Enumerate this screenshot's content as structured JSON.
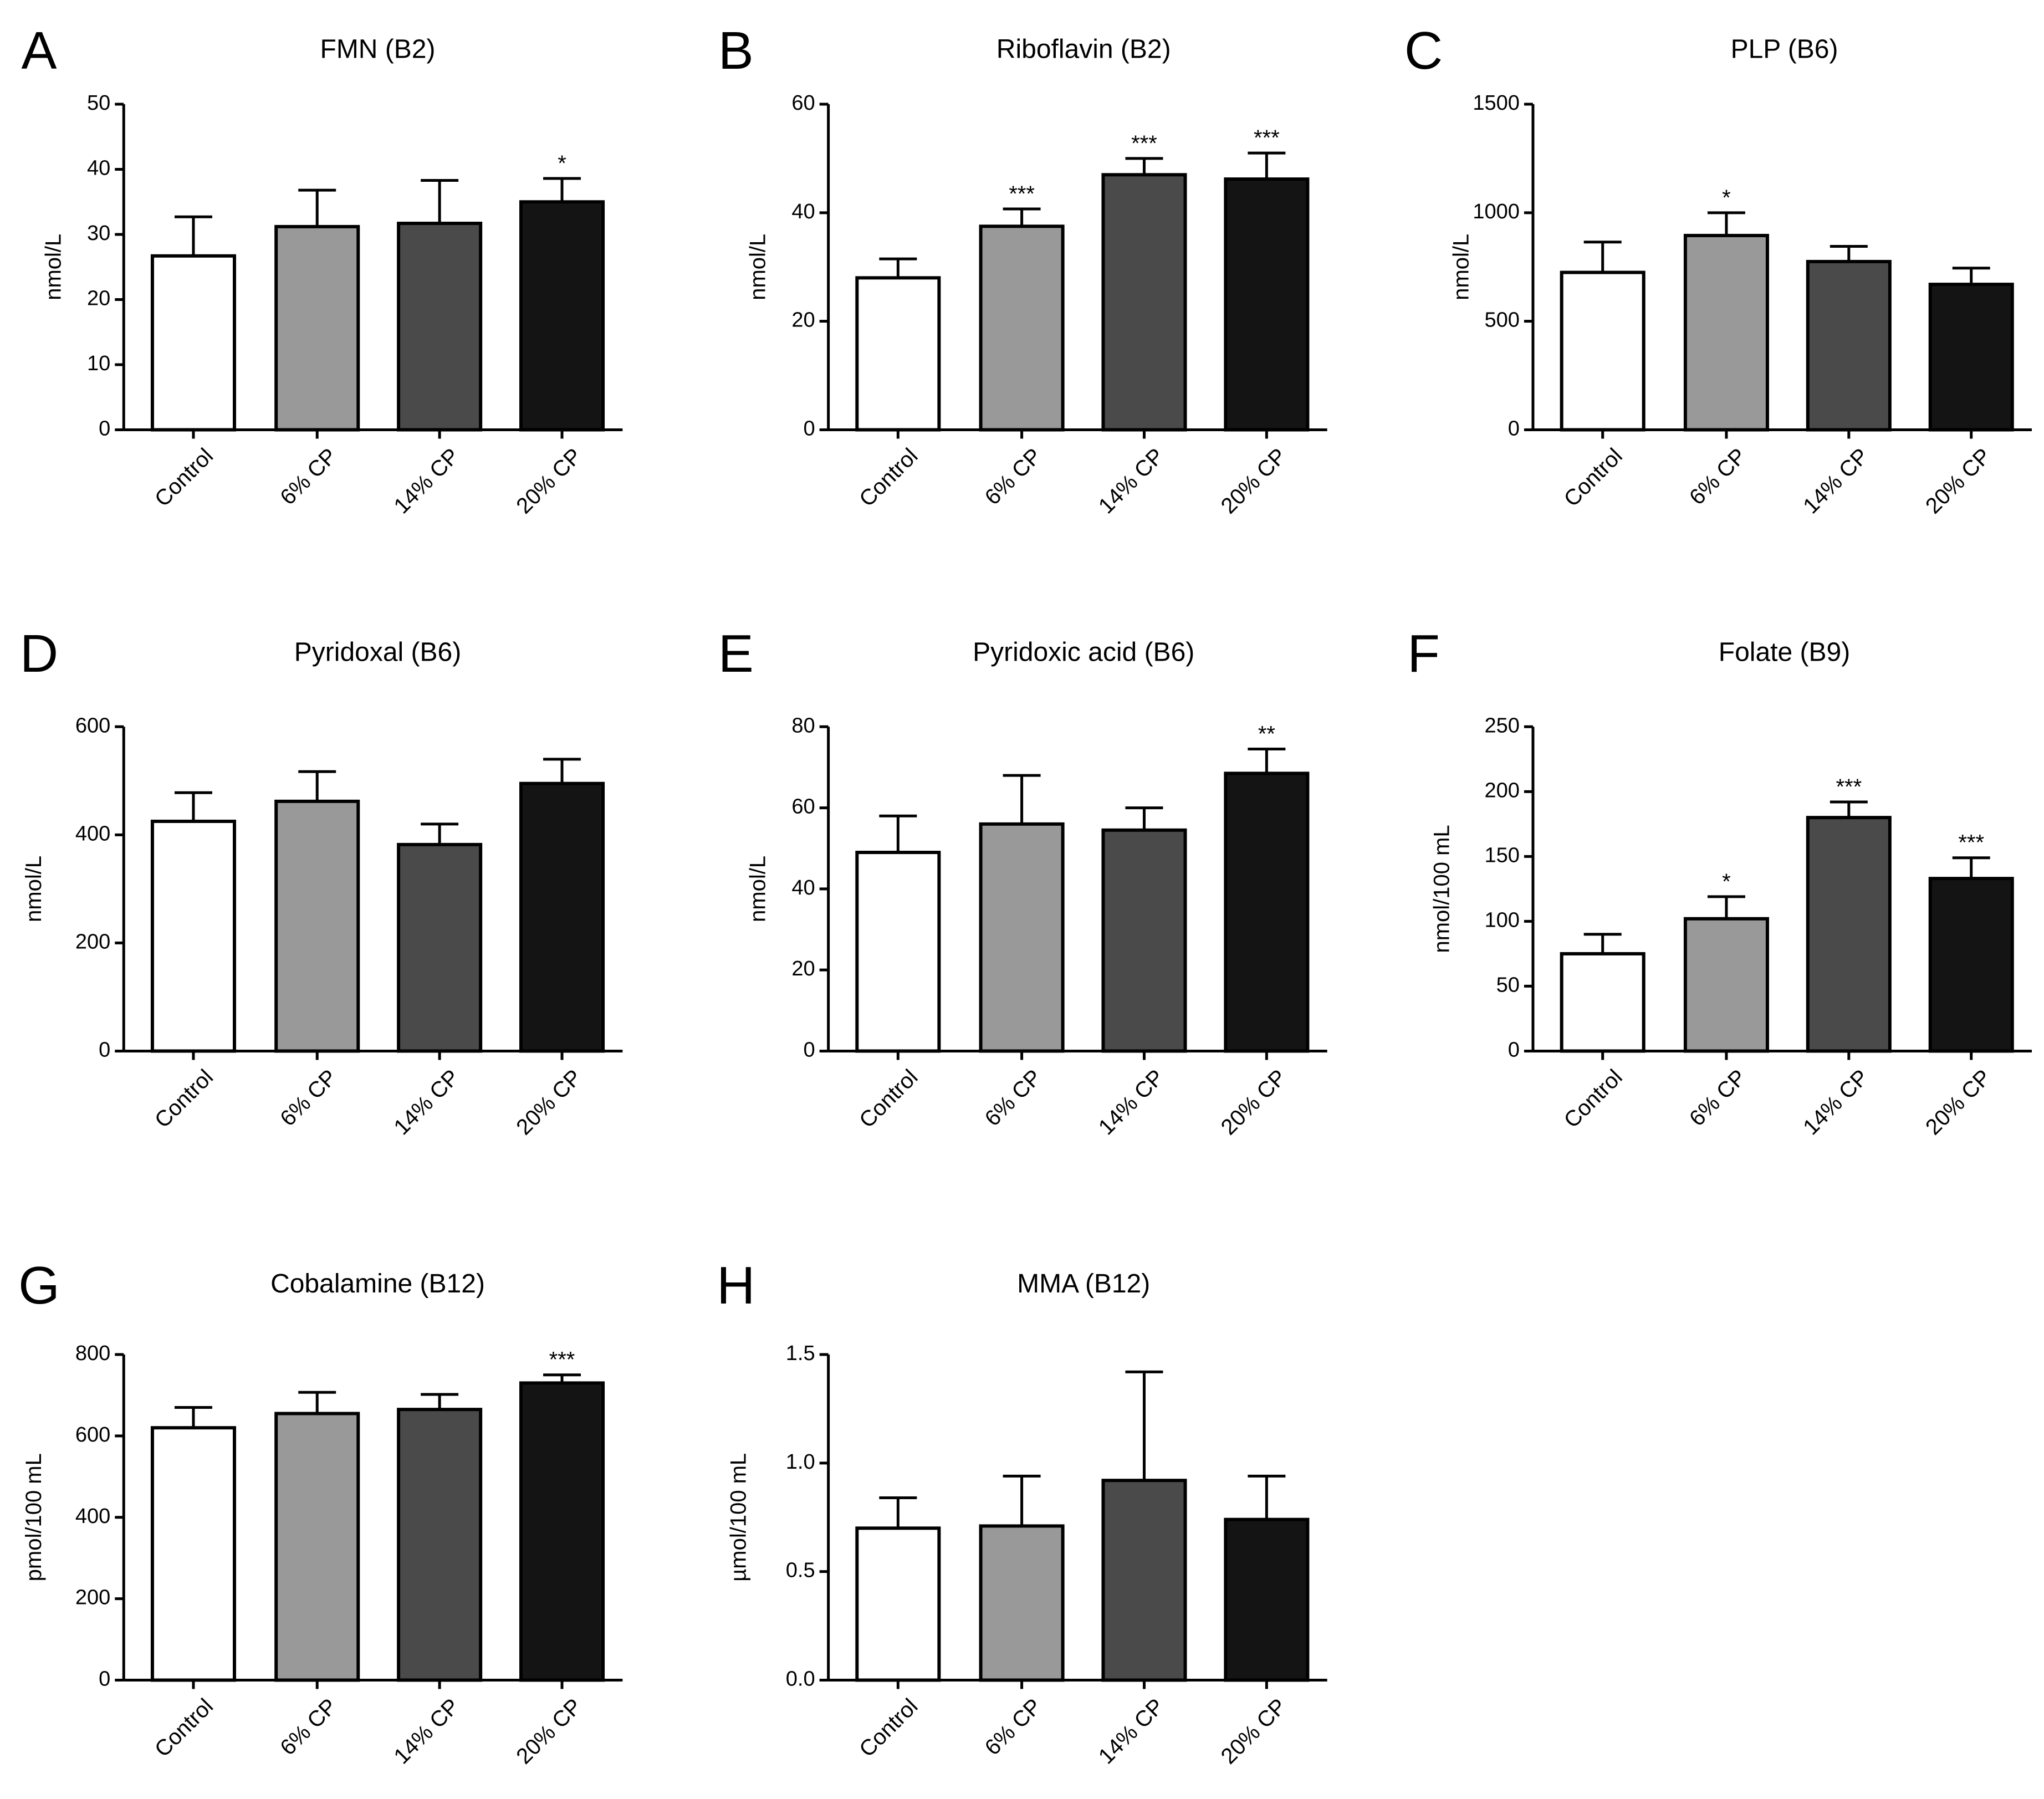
{
  "chart_data": [
    {
      "panel": "A",
      "type": "bar",
      "title": "FMN (B2)",
      "ylabel": "nmol/L",
      "categories": [
        "Control",
        "6% CP",
        "14% CP",
        "20% CP"
      ],
      "values": [
        26.7,
        31.2,
        31.7,
        35.0
      ],
      "error": [
        6.0,
        5.6,
        6.6,
        3.6
      ],
      "significance": [
        "",
        "",
        "",
        "*"
      ],
      "ylim": [
        0,
        50
      ],
      "yticks": [
        0,
        10,
        20,
        30,
        40,
        50
      ],
      "ytick_labels": [
        "0",
        "10",
        "20",
        "30",
        "40",
        "50"
      ],
      "bar_colors": [
        "#ffffff",
        "#999999",
        "#4a4a4a",
        "#141414"
      ],
      "grid": false,
      "legend": "none"
    },
    {
      "panel": "B",
      "type": "bar",
      "title": "Riboflavin (B2)",
      "ylabel": "nmol/L",
      "categories": [
        "Control",
        "6% CP",
        "14% CP",
        "20% CP"
      ],
      "values": [
        28.0,
        37.5,
        47.0,
        46.2
      ],
      "error": [
        3.5,
        3.2,
        3.0,
        4.8
      ],
      "significance": [
        "",
        "***",
        "***",
        "***"
      ],
      "ylim": [
        0,
        60
      ],
      "yticks": [
        0,
        20,
        40,
        60
      ],
      "ytick_labels": [
        "0",
        "20",
        "40",
        "60"
      ],
      "bar_colors": [
        "#ffffff",
        "#999999",
        "#4a4a4a",
        "#141414"
      ],
      "grid": false,
      "legend": "none"
    },
    {
      "panel": "C",
      "type": "bar",
      "title": "PLP (B6)",
      "ylabel": "nmol/L",
      "categories": [
        "Control",
        "6% CP",
        "14% CP",
        "20% CP"
      ],
      "values": [
        725,
        895,
        775,
        670
      ],
      "error": [
        140,
        105,
        70,
        75
      ],
      "significance": [
        "",
        "*",
        "",
        ""
      ],
      "ylim": [
        0,
        1500
      ],
      "yticks": [
        0,
        500,
        1000,
        1500
      ],
      "ytick_labels": [
        "0",
        "500",
        "1000",
        "1500"
      ],
      "bar_colors": [
        "#ffffff",
        "#999999",
        "#4a4a4a",
        "#141414"
      ],
      "grid": false,
      "legend": "none"
    },
    {
      "panel": "D",
      "type": "bar",
      "title": "Pyridoxal (B6)",
      "ylabel": "nmol/L",
      "categories": [
        "Control",
        "6% CP",
        "14% CP",
        "20% CP"
      ],
      "values": [
        425,
        462,
        382,
        495
      ],
      "error": [
        53,
        55,
        38,
        45
      ],
      "significance": [
        "",
        "",
        "",
        ""
      ],
      "ylim": [
        0,
        600
      ],
      "yticks": [
        0,
        200,
        400,
        600
      ],
      "ytick_labels": [
        "0",
        "200",
        "400",
        "600"
      ],
      "bar_colors": [
        "#ffffff",
        "#999999",
        "#4a4a4a",
        "#141414"
      ],
      "grid": false,
      "legend": "none"
    },
    {
      "panel": "E",
      "type": "bar",
      "title": "Pyridoxic acid (B6)",
      "ylabel": "nmol/L",
      "categories": [
        "Control",
        "6% CP",
        "14% CP",
        "20% CP"
      ],
      "values": [
        49,
        56,
        54.5,
        68.5
      ],
      "error": [
        9,
        12,
        5.5,
        6
      ],
      "significance": [
        "",
        "",
        "",
        "**"
      ],
      "ylim": [
        0,
        80
      ],
      "yticks": [
        0,
        20,
        40,
        60,
        80
      ],
      "ytick_labels": [
        "0",
        "20",
        "40",
        "60",
        "80"
      ],
      "bar_colors": [
        "#ffffff",
        "#999999",
        "#4a4a4a",
        "#141414"
      ],
      "grid": false,
      "legend": "none"
    },
    {
      "panel": "F",
      "type": "bar",
      "title": "Folate (B9)",
      "ylabel": "nmol/100 mL",
      "categories": [
        "Control",
        "6% CP",
        "14% CP",
        "20% CP"
      ],
      "values": [
        75,
        102,
        180,
        133
      ],
      "error": [
        15,
        17,
        12,
        16
      ],
      "significance": [
        "",
        "*",
        "***",
        "***"
      ],
      "ylim": [
        0,
        250
      ],
      "yticks": [
        0,
        50,
        100,
        150,
        200,
        250
      ],
      "ytick_labels": [
        "0",
        "50",
        "100",
        "150",
        "200",
        "250"
      ],
      "bar_colors": [
        "#ffffff",
        "#999999",
        "#4a4a4a",
        "#141414"
      ],
      "grid": false,
      "legend": "none"
    },
    {
      "panel": "G",
      "type": "bar",
      "title": "Cobalamine (B12)",
      "ylabel": "pmol/100 mL",
      "categories": [
        "Control",
        "6% CP",
        "14% CP",
        "20% CP"
      ],
      "values": [
        620,
        655,
        665,
        730
      ],
      "error": [
        50,
        52,
        37,
        20
      ],
      "significance": [
        "",
        "",
        "",
        "***"
      ],
      "ylim": [
        0,
        800
      ],
      "yticks": [
        0,
        200,
        400,
        600,
        800
      ],
      "ytick_labels": [
        "0",
        "200",
        "400",
        "600",
        "800"
      ],
      "bar_colors": [
        "#ffffff",
        "#999999",
        "#4a4a4a",
        "#141414"
      ],
      "grid": false,
      "legend": "none"
    },
    {
      "panel": "H",
      "type": "bar",
      "title": "MMA (B12)",
      "ylabel": "µmol/100 mL",
      "categories": [
        "Control",
        "6% CP",
        "14% CP",
        "20% CP"
      ],
      "values": [
        0.7,
        0.71,
        0.92,
        0.74
      ],
      "error": [
        0.14,
        0.23,
        0.5,
        0.2
      ],
      "significance": [
        "",
        "",
        "",
        ""
      ],
      "ylim": [
        0,
        1.5
      ],
      "yticks": [
        0,
        0.5,
        1.0,
        1.5
      ],
      "ytick_labels": [
        "0.0",
        "0.5",
        "1.0",
        "1.5"
      ],
      "bar_colors": [
        "#ffffff",
        "#999999",
        "#4a4a4a",
        "#141414"
      ],
      "grid": false,
      "legend": "none"
    }
  ]
}
